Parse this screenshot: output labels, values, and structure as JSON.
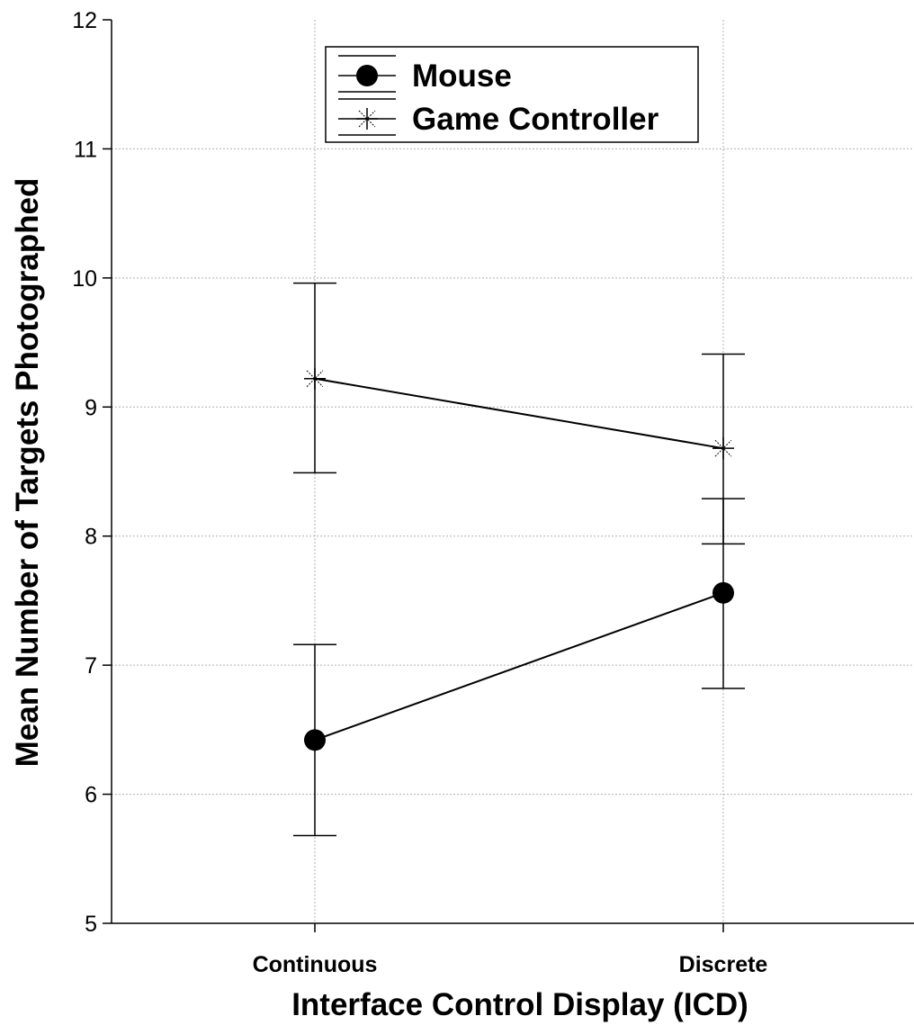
{
  "chart_data": {
    "type": "line",
    "title": "",
    "xlabel": "Interface Control Display (ICD)",
    "ylabel": "Mean Number of Targets Photographed",
    "categories": [
      "Continuous",
      "Discrete"
    ],
    "ylim": [
      5,
      12
    ],
    "yticks": [
      "5",
      "6",
      "7",
      "8",
      "9",
      "10",
      "11",
      "12"
    ],
    "grid": true,
    "legend_position": "top-center",
    "series": [
      {
        "name": "Mouse",
        "marker": "filled-circle",
        "values": [
          6.42,
          7.56
        ],
        "error_low": [
          5.68,
          6.82
        ],
        "error_high": [
          7.16,
          8.29
        ]
      },
      {
        "name": "Game Controller",
        "marker": "asterisk",
        "values": [
          9.22,
          8.68
        ],
        "error_low": [
          8.49,
          7.94
        ],
        "error_high": [
          9.96,
          9.41
        ]
      }
    ],
    "colors": {
      "line": "#000000",
      "grid": "#b0b0b0",
      "background": "#ffffff"
    }
  }
}
